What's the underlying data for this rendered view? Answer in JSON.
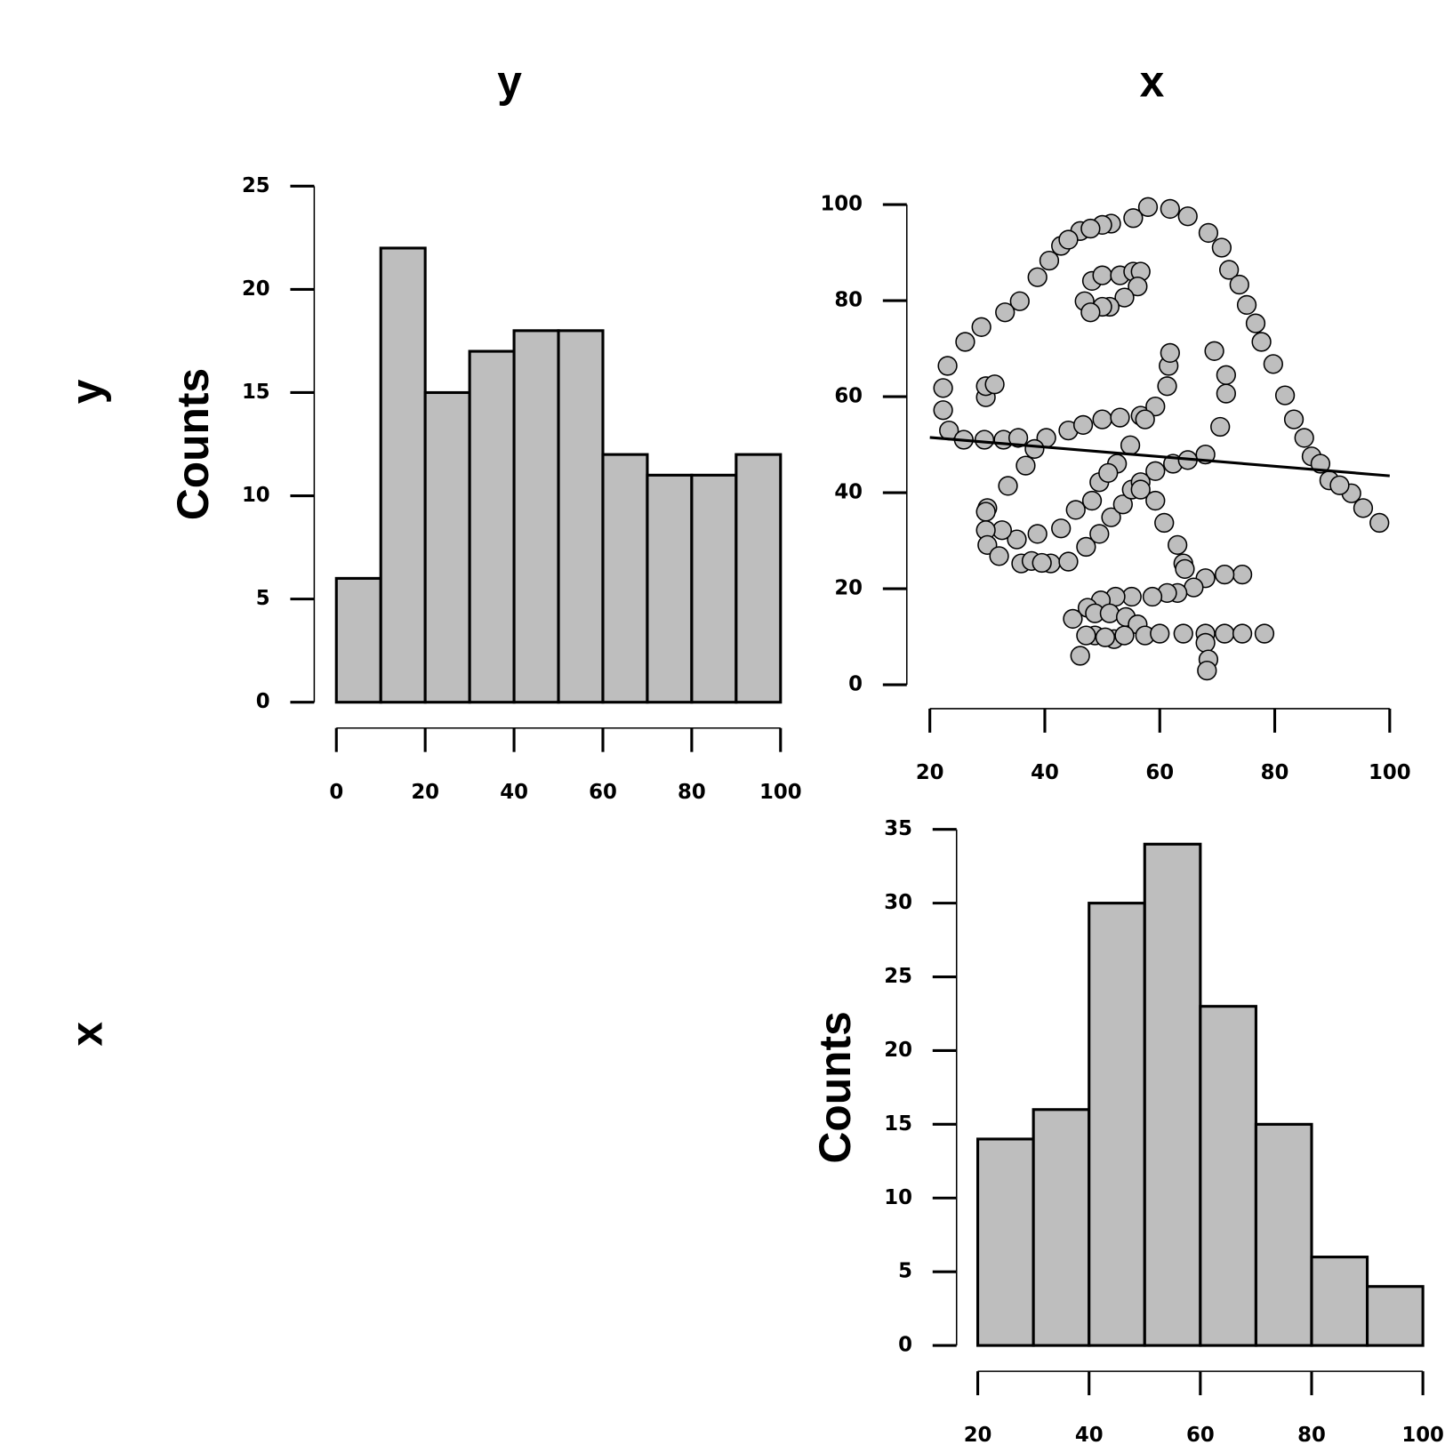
{
  "columns": [
    "y",
    "x"
  ],
  "rows": [
    "y",
    "x"
  ],
  "chart_data": [
    {
      "type": "histogram",
      "ylabel": "Counts",
      "color": "#bebebe",
      "bins": [
        0,
        10,
        20,
        30,
        40,
        50,
        60,
        70,
        80,
        90,
        100
      ],
      "values": [
        6,
        22,
        15,
        17,
        18,
        18,
        12,
        11,
        11,
        12
      ],
      "xlim": [
        0,
        100
      ],
      "xticks": [
        0,
        20,
        40,
        60,
        80,
        100
      ],
      "ylim": [
        0,
        25
      ],
      "yticks": [
        0,
        5,
        10,
        15,
        20,
        25
      ]
    },
    {
      "type": "scatter",
      "color": "#bebebe",
      "x": [
        55.38,
        51.54,
        46.15,
        42.82,
        40.77,
        38.72,
        35.64,
        33.08,
        28.97,
        26.15,
        23.08,
        22.31,
        22.31,
        23.33,
        25.9,
        29.49,
        32.82,
        35.38,
        40.26,
        44.1,
        46.67,
        50,
        53.08,
        56.67,
        59.23,
        61.28,
        61.54,
        61.79,
        57.44,
        54.87,
        52.56,
        48.21,
        49.49,
        51.03,
        45.38,
        42.82,
        38.72,
        35.13,
        32.56,
        30,
        33.59,
        36.67,
        38.21,
        29.74,
        29.74,
        30,
        32.05,
        35.9,
        41.03,
        44.1,
        47.18,
        49.49,
        51.54,
        53.59,
        55.13,
        56.67,
        59.23,
        62.31,
        64.87,
        67.95,
        70.51,
        71.54,
        71.54,
        69.49,
        46.92,
        48.21,
        50,
        53.08,
        55.38,
        56.67,
        56.15,
        53.85,
        51.28,
        50,
        47.95,
        29.74,
        29.74,
        31.28,
        57.95,
        61.79,
        64.87,
        68.46,
        70.77,
        72.05,
        73.85,
        75.13,
        76.67,
        77.69,
        79.74,
        81.79,
        83.33,
        85.13,
        86.41,
        87.95,
        89.49,
        93.33,
        95.38,
        98.21,
        56.67,
        59.23,
        60.77,
        63.08,
        64.1,
        64.36,
        74.36,
        71.28,
        67.95,
        65.9,
        63.08,
        61.28,
        58.72,
        55.13,
        52.31,
        49.74,
        47.44,
        44.87,
        48.72,
        51.28,
        54.1,
        56.15,
        52.05,
        48.72,
        47.18,
        46.15,
        50.51,
        53.85,
        57.44,
        60,
        64.1,
        67.95,
        71.28,
        74.36,
        78.21,
        67.95,
        68.46,
        68.21,
        37.69,
        39.49,
        91.28,
        50,
        47.95,
        44.1
      ],
      "y": [
        97.18,
        96.03,
        94.49,
        91.41,
        88.33,
        84.87,
        79.87,
        77.56,
        74.49,
        71.41,
        66.41,
        61.79,
        57.18,
        52.95,
        51.03,
        51.03,
        51.03,
        51.41,
        51.41,
        52.95,
        54.1,
        55.26,
        55.64,
        56.03,
        57.95,
        62.18,
        66.41,
        69.1,
        55.26,
        49.87,
        46.03,
        38.33,
        42.18,
        44.1,
        36.41,
        32.56,
        31.41,
        30.26,
        32.18,
        36.79,
        41.41,
        45.64,
        49.1,
        36.03,
        32.18,
        29.1,
        26.79,
        25.26,
        25.26,
        25.64,
        28.72,
        31.41,
        34.87,
        37.56,
        40.64,
        42.18,
        44.49,
        46.03,
        46.79,
        47.95,
        53.72,
        60.64,
        64.49,
        69.49,
        79.87,
        84.1,
        85.26,
        85.26,
        86.03,
        86.03,
        82.95,
        80.64,
        78.72,
        78.72,
        77.56,
        59.87,
        62.18,
        62.56,
        99.49,
        99.1,
        97.56,
        94.1,
        91.03,
        86.41,
        83.33,
        79.1,
        75.26,
        71.41,
        66.79,
        60.26,
        55.26,
        51.41,
        47.56,
        46.03,
        42.56,
        39.87,
        36.79,
        33.72,
        40.64,
        38.33,
        33.72,
        29.1,
        25.26,
        24.1,
        22.95,
        22.95,
        22.18,
        20.26,
        19.1,
        19.1,
        18.33,
        18.33,
        18.33,
        17.56,
        16.03,
        13.72,
        14.87,
        14.87,
        14.1,
        12.56,
        9.49,
        10.26,
        10.26,
        6.03,
        9.87,
        10.26,
        10.26,
        10.64,
        10.64,
        10.64,
        10.64,
        10.64,
        10.64,
        8.72,
        5.26,
        2.95,
        25.77,
        25.38,
        41.54,
        95.77,
        95,
        92.69
      ],
      "fit_line": {
        "x": [
          20,
          100
        ],
        "y": [
          51.5,
          43.5
        ]
      },
      "xlim": [
        20,
        100
      ],
      "xticks": [
        20,
        40,
        60,
        80,
        100
      ],
      "ylim": [
        0,
        100
      ],
      "yticks": [
        0,
        20,
        40,
        60,
        80,
        100
      ]
    },
    {
      "type": "histogram",
      "ylabel": "Counts",
      "color": "#bebebe",
      "bins": [
        20,
        30,
        40,
        50,
        60,
        70,
        80,
        90,
        100
      ],
      "values": [
        14,
        16,
        30,
        34,
        23,
        15,
        6,
        4
      ],
      "xlim": [
        20,
        100
      ],
      "xticks": [
        20,
        40,
        60,
        80,
        100
      ],
      "ylim": [
        0,
        35
      ],
      "yticks": [
        0,
        5,
        10,
        15,
        20,
        25,
        30,
        35
      ]
    }
  ]
}
